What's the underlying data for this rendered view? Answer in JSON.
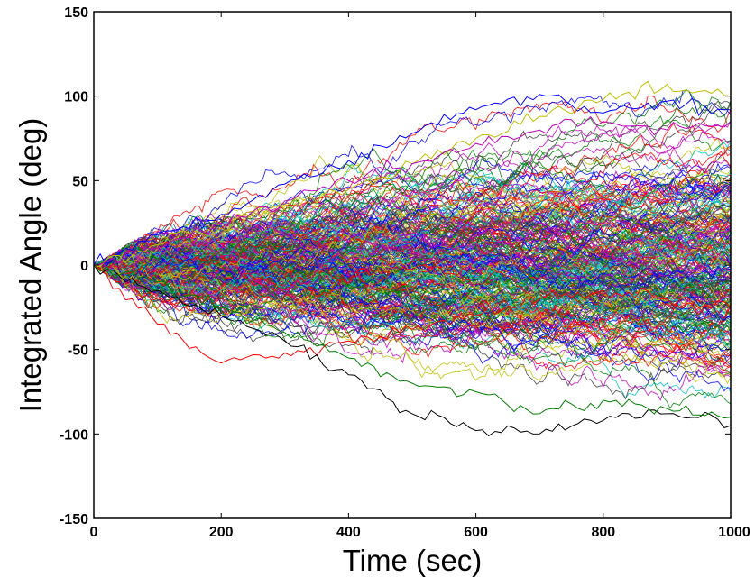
{
  "chart_data": {
    "type": "line",
    "title": "",
    "xlabel": "Time (sec)",
    "ylabel": "Integrated Angle (deg)",
    "xlim": [
      0,
      1000
    ],
    "ylim": [
      -150,
      150
    ],
    "xticks": [
      0,
      200,
      400,
      600,
      800,
      1000
    ],
    "xtick_labels": [
      "0",
      "200",
      "400",
      "600",
      "800",
      "1000"
    ],
    "yticks": [
      150,
      100,
      50,
      0,
      -50,
      -100,
      -150
    ],
    "ytick_labels": [
      "150",
      "100",
      "50",
      "0",
      "-50",
      "-100",
      "-150"
    ],
    "grid": false,
    "legend": "none",
    "series_count": 300,
    "series_palette": [
      "#0000ff",
      "#008000",
      "#ff0000",
      "#00bfbf",
      "#bf00bf",
      "#bfbf00",
      "#404040"
    ],
    "envelope": {
      "x": [
        0,
        200,
        400,
        600,
        800,
        1000
      ],
      "upper": [
        0,
        47,
        75,
        90,
        102,
        108
      ],
      "lower": [
        0,
        -60,
        -78,
        -98,
        -101,
        -98
      ]
    },
    "highlighted_series": [
      {
        "color": "#0000ff",
        "x": [
          0,
          100,
          200,
          300,
          400,
          500,
          600,
          700,
          800,
          900,
          1000
        ],
        "y": [
          0,
          18,
          30,
          48,
          62,
          78,
          92,
          101,
          90,
          97,
          92
        ]
      },
      {
        "color": "#bfbf00",
        "x": [
          0,
          100,
          200,
          300,
          400,
          500,
          600,
          700,
          800,
          900,
          1000
        ],
        "y": [
          0,
          12,
          22,
          35,
          45,
          60,
          75,
          88,
          98,
          107,
          100
        ]
      },
      {
        "color": "#ff0000",
        "x": [
          0,
          100,
          200,
          300,
          400,
          500,
          600,
          700,
          800,
          900,
          1000
        ],
        "y": [
          0,
          -35,
          -58,
          -52,
          -45,
          -38,
          -30,
          -20,
          -15,
          -20,
          -25
        ]
      },
      {
        "color": "#000000",
        "x": [
          0,
          100,
          200,
          300,
          400,
          500,
          600,
          700,
          800,
          900,
          1000
        ],
        "y": [
          0,
          -15,
          -30,
          -45,
          -65,
          -88,
          -98,
          -100,
          -92,
          -88,
          -95
        ]
      },
      {
        "color": "#008000",
        "x": [
          0,
          100,
          200,
          300,
          400,
          500,
          600,
          700,
          800,
          900,
          1000
        ],
        "y": [
          0,
          -10,
          -25,
          -40,
          -55,
          -70,
          -75,
          -88,
          -80,
          -85,
          -90
        ]
      },
      {
        "color": "#bf00bf",
        "x": [
          0,
          100,
          200,
          300,
          400,
          500,
          600,
          700,
          800,
          900,
          1000
        ],
        "y": [
          0,
          10,
          25,
          38,
          50,
          60,
          72,
          80,
          85,
          80,
          85
        ]
      }
    ]
  }
}
